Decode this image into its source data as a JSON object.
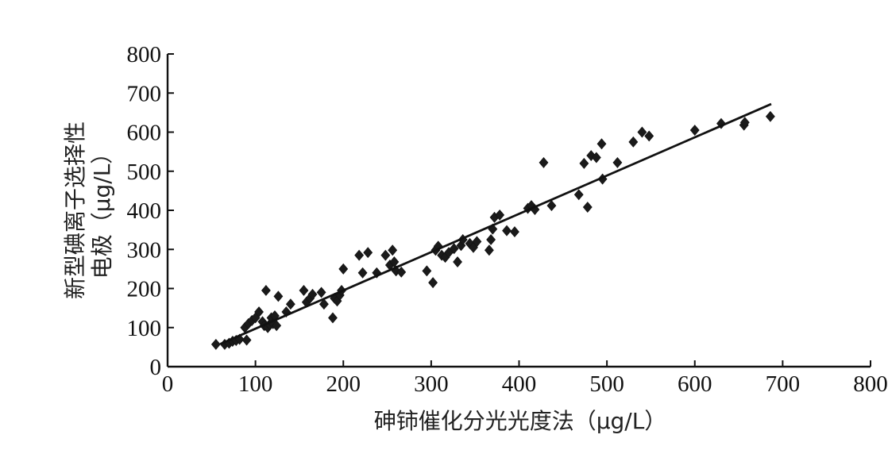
{
  "chart_data": {
    "type": "scatter",
    "title": "",
    "xlabel": "砷铈催化分光光度法（μg/L）",
    "ylabel_line1": "新型碘离子选择性",
    "ylabel_line2": "电极（μg/L）",
    "xlim": [
      0,
      800
    ],
    "ylim": [
      0,
      800
    ],
    "x_ticks": [
      0,
      100,
      200,
      300,
      400,
      500,
      600,
      700,
      800
    ],
    "y_ticks": [
      0,
      100,
      200,
      300,
      400,
      500,
      600,
      700,
      800
    ],
    "x_tick_labels": [
      "0",
      "100",
      "200",
      "300",
      "400",
      "500",
      "600",
      "700",
      "800"
    ],
    "y_tick_labels": [
      "0",
      "100",
      "200",
      "300",
      "400",
      "500",
      "600",
      "700",
      "800"
    ],
    "fit_line": {
      "x": [
        60,
        687
      ],
      "y": [
        58,
        672
      ]
    },
    "marker": "diamond",
    "points": [
      {
        "x": 55,
        "y": 57
      },
      {
        "x": 65,
        "y": 57
      },
      {
        "x": 70,
        "y": 60
      },
      {
        "x": 74,
        "y": 65
      },
      {
        "x": 78,
        "y": 67
      },
      {
        "x": 82,
        "y": 70
      },
      {
        "x": 90,
        "y": 68
      },
      {
        "x": 88,
        "y": 100
      },
      {
        "x": 92,
        "y": 110
      },
      {
        "x": 96,
        "y": 118
      },
      {
        "x": 100,
        "y": 125
      },
      {
        "x": 104,
        "y": 140
      },
      {
        "x": 108,
        "y": 115
      },
      {
        "x": 110,
        "y": 105
      },
      {
        "x": 112,
        "y": 195
      },
      {
        "x": 114,
        "y": 100
      },
      {
        "x": 116,
        "y": 108
      },
      {
        "x": 118,
        "y": 125
      },
      {
        "x": 120,
        "y": 110
      },
      {
        "x": 122,
        "y": 130
      },
      {
        "x": 124,
        "y": 105
      },
      {
        "x": 126,
        "y": 180
      },
      {
        "x": 135,
        "y": 140
      },
      {
        "x": 140,
        "y": 160
      },
      {
        "x": 155,
        "y": 195
      },
      {
        "x": 158,
        "y": 165
      },
      {
        "x": 162,
        "y": 175
      },
      {
        "x": 165,
        "y": 185
      },
      {
        "x": 175,
        "y": 190
      },
      {
        "x": 178,
        "y": 160
      },
      {
        "x": 188,
        "y": 125
      },
      {
        "x": 190,
        "y": 175
      },
      {
        "x": 193,
        "y": 168
      },
      {
        "x": 196,
        "y": 183
      },
      {
        "x": 198,
        "y": 195
      },
      {
        "x": 200,
        "y": 250
      },
      {
        "x": 218,
        "y": 285
      },
      {
        "x": 222,
        "y": 240
      },
      {
        "x": 228,
        "y": 292
      },
      {
        "x": 238,
        "y": 240
      },
      {
        "x": 248,
        "y": 285
      },
      {
        "x": 253,
        "y": 260
      },
      {
        "x": 256,
        "y": 298
      },
      {
        "x": 258,
        "y": 268
      },
      {
        "x": 260,
        "y": 245
      },
      {
        "x": 266,
        "y": 242
      },
      {
        "x": 295,
        "y": 245
      },
      {
        "x": 302,
        "y": 215
      },
      {
        "x": 305,
        "y": 298
      },
      {
        "x": 308,
        "y": 308
      },
      {
        "x": 312,
        "y": 285
      },
      {
        "x": 316,
        "y": 280
      },
      {
        "x": 320,
        "y": 292
      },
      {
        "x": 326,
        "y": 302
      },
      {
        "x": 330,
        "y": 268
      },
      {
        "x": 334,
        "y": 310
      },
      {
        "x": 336,
        "y": 325
      },
      {
        "x": 344,
        "y": 315
      },
      {
        "x": 348,
        "y": 305
      },
      {
        "x": 352,
        "y": 320
      },
      {
        "x": 366,
        "y": 298
      },
      {
        "x": 368,
        "y": 325
      },
      {
        "x": 370,
        "y": 352
      },
      {
        "x": 372,
        "y": 382
      },
      {
        "x": 378,
        "y": 388
      },
      {
        "x": 386,
        "y": 348
      },
      {
        "x": 395,
        "y": 345
      },
      {
        "x": 410,
        "y": 405
      },
      {
        "x": 414,
        "y": 412
      },
      {
        "x": 418,
        "y": 402
      },
      {
        "x": 428,
        "y": 522
      },
      {
        "x": 437,
        "y": 412
      },
      {
        "x": 468,
        "y": 440
      },
      {
        "x": 474,
        "y": 520
      },
      {
        "x": 478,
        "y": 408
      },
      {
        "x": 482,
        "y": 540
      },
      {
        "x": 488,
        "y": 535
      },
      {
        "x": 494,
        "y": 570
      },
      {
        "x": 495,
        "y": 480
      },
      {
        "x": 512,
        "y": 522
      },
      {
        "x": 530,
        "y": 575
      },
      {
        "x": 540,
        "y": 600
      },
      {
        "x": 548,
        "y": 590
      },
      {
        "x": 600,
        "y": 605
      },
      {
        "x": 630,
        "y": 622
      },
      {
        "x": 656,
        "y": 618
      },
      {
        "x": 657,
        "y": 625
      },
      {
        "x": 686,
        "y": 640
      }
    ]
  }
}
